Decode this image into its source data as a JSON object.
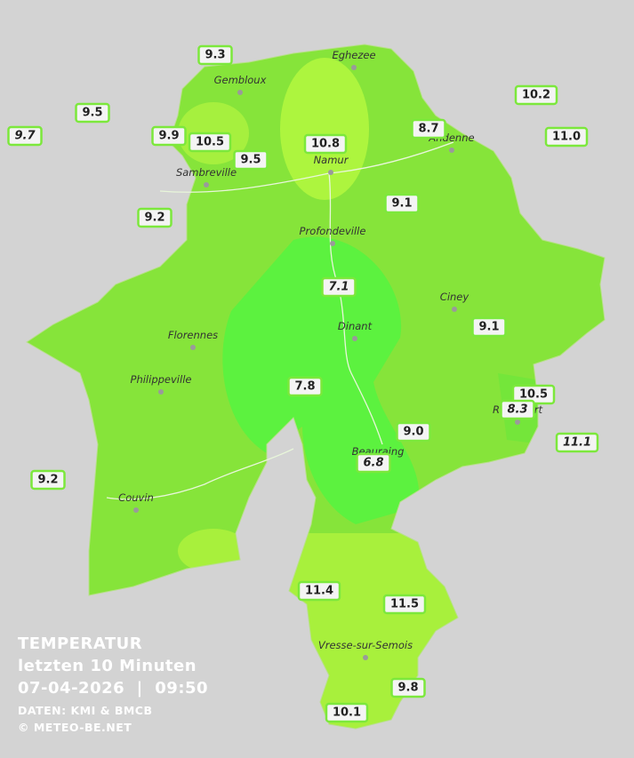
{
  "title": {
    "lines": [
      "TEMPERATUR",
      "letzten 10 Minuten",
      "07-04-2026  |  09:50"
    ],
    "credits": [
      "DATEN: KMI & BMCB",
      "© METEO-BE.NET"
    ]
  },
  "places": [
    "Eghezee",
    "Gembloux",
    "Andenne",
    "Namur",
    "Sambreville",
    "Profondeville",
    "Ciney",
    "Dinant",
    "Florennes",
    "Philippeville",
    "Rochefort",
    "Beauraing",
    "Couvin",
    "Vresse-sur-Semois"
  ],
  "stations": [
    "9.3",
    "9.5",
    "9.7",
    "9.9",
    "10.5",
    "9.5",
    "10.8",
    "8.7",
    "10.2",
    "11.0",
    "9.2",
    "9.1",
    "7.1",
    "9.1",
    "7.8",
    "10.5",
    "8.3",
    "9.0",
    "11.1",
    "6.8",
    "9.2",
    "11.4",
    "11.5",
    "9.8",
    "10.1"
  ]
}
